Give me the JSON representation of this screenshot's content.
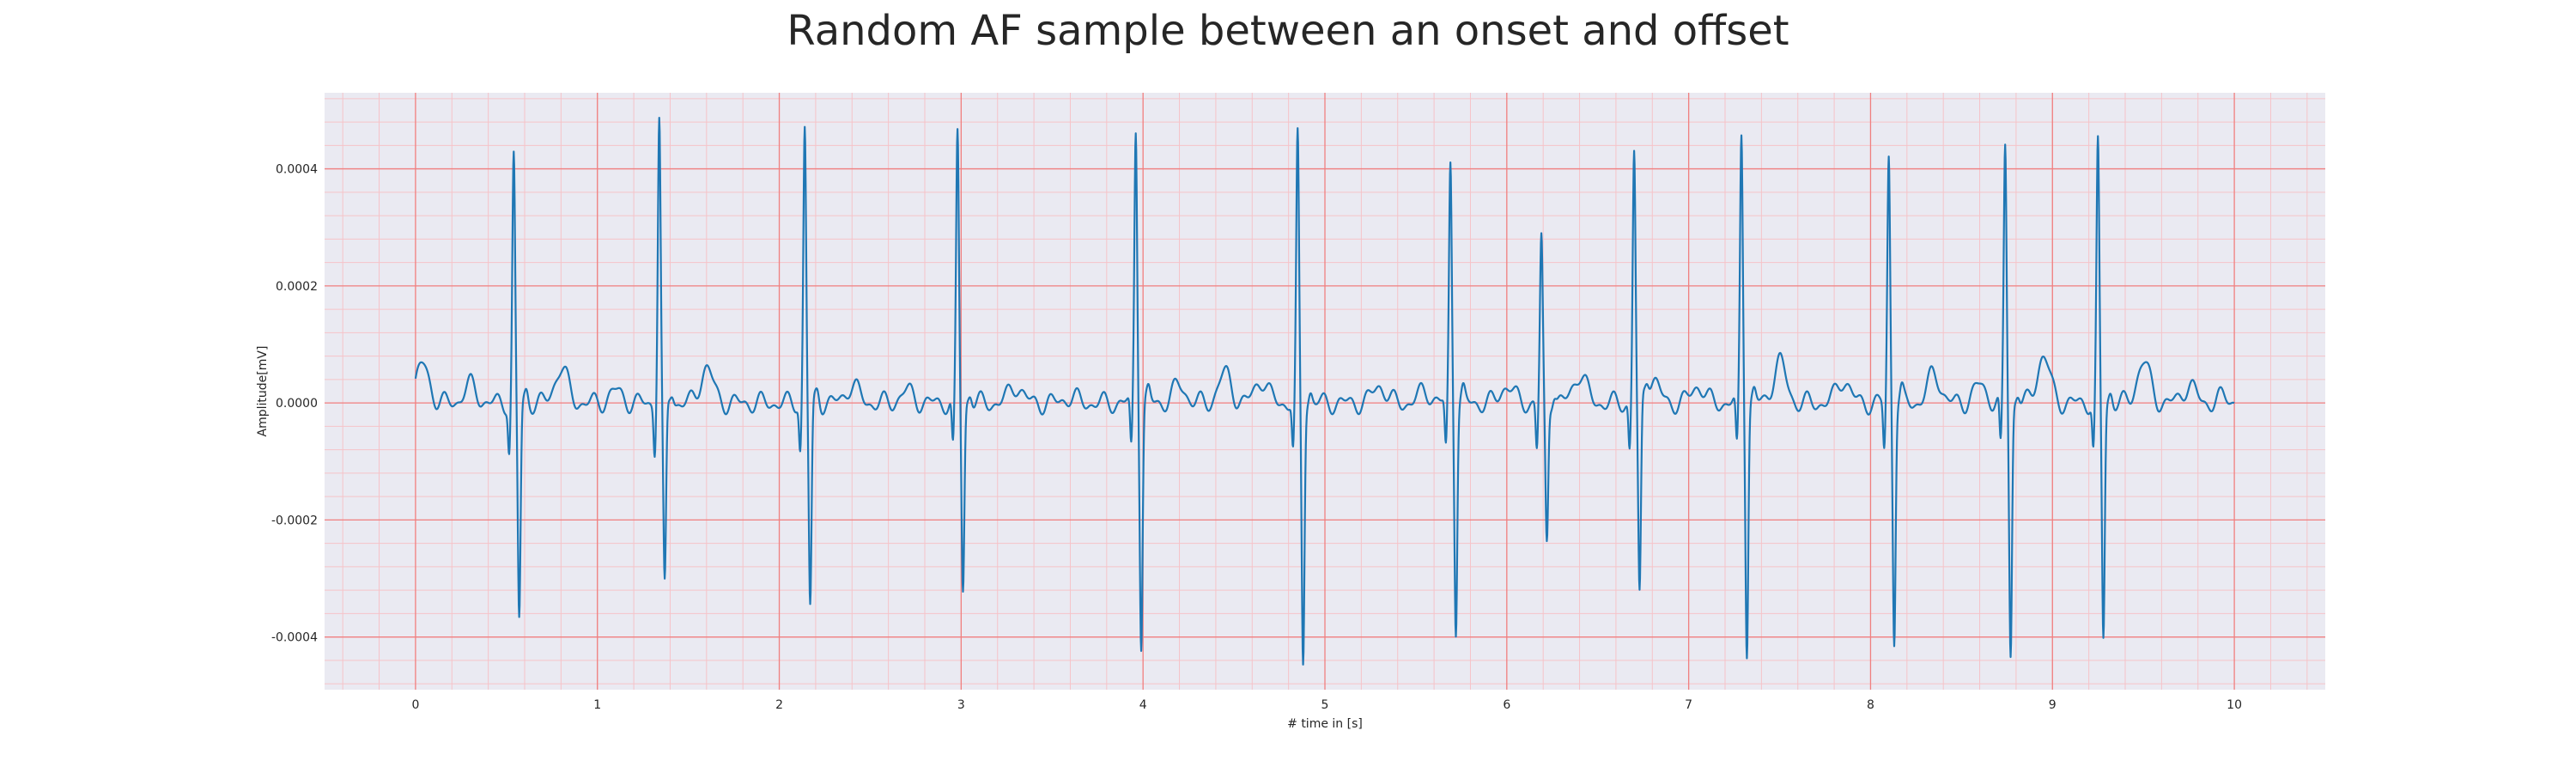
{
  "chart_data": {
    "type": "line",
    "title": "Random AF sample between an onset and offset",
    "xlabel": "# time in [s]",
    "ylabel": "Amplitude[mV]",
    "xlim": [
      -0.5,
      10.5
    ],
    "ylim": [
      -0.00049,
      0.00053
    ],
    "x_ticks": [
      0,
      1,
      2,
      3,
      4,
      5,
      6,
      7,
      8,
      9,
      10
    ],
    "x_tick_labels": [
      "0",
      "1",
      "2",
      "3",
      "4",
      "5",
      "6",
      "7",
      "8",
      "9",
      "10"
    ],
    "y_ticks": [
      -0.0004,
      -0.0002,
      0.0,
      0.0002,
      0.0004
    ],
    "y_tick_labels": [
      "-0.0004",
      "-0.0002",
      "0.0000",
      "0.0002",
      "0.0004"
    ],
    "grid": true,
    "colors": {
      "line": "#1f77b4",
      "plot_background": "#eaeaf2",
      "major_grid": "#f08080",
      "minor_grid": "#f6c3c8"
    },
    "series": [
      {
        "r_peaks": [
          [
            0.54,
            0.00042,
            -0.00037
          ],
          [
            1.34,
            0.00049,
            -0.00032
          ],
          [
            2.14,
            0.00047,
            -0.00035
          ],
          [
            2.98,
            0.00046,
            -0.00032
          ],
          [
            3.96,
            0.00047,
            -0.00041
          ],
          [
            4.85,
            0.00045,
            -0.00044
          ],
          [
            5.69,
            0.00041,
            -0.00038
          ],
          [
            6.19,
            0.00028,
            -0.00024
          ],
          [
            6.7,
            0.00043,
            -0.00034
          ],
          [
            7.29,
            0.00046,
            -0.00042
          ],
          [
            8.1,
            0.00042,
            -0.0004
          ],
          [
            8.74,
            0.00044,
            -0.00043
          ],
          [
            9.25,
            0.00044,
            -0.0004
          ]
        ],
        "baseline_waves": [
          [
            0.04,
            6.5e-05
          ],
          [
            0.3,
            3e-05
          ],
          [
            0.8,
            6e-05
          ],
          [
            1.1,
            2e-05
          ],
          [
            1.6,
            6e-05
          ],
          [
            2.4,
            3e-05
          ],
          [
            2.7,
            2e-05
          ],
          [
            3.3,
            3e-05
          ],
          [
            3.6,
            1e-05
          ],
          [
            4.2,
            3e-05
          ],
          [
            4.45,
            5e-05
          ],
          [
            4.65,
            4e-05
          ],
          [
            5.3,
            3e-05
          ],
          [
            5.55,
            2e-05
          ],
          [
            6.0,
            3e-05
          ],
          [
            6.4,
            5e-05
          ],
          [
            6.8,
            4e-05
          ],
          [
            7.05,
            3e-05
          ],
          [
            7.5,
            7e-05
          ],
          [
            7.85,
            4e-05
          ],
          [
            8.35,
            5e-05
          ],
          [
            8.6,
            3e-05
          ],
          [
            8.95,
            8e-05
          ],
          [
            9.5,
            7e-05
          ],
          [
            9.75,
            3e-05
          ],
          [
            9.95,
            1e-05
          ]
        ]
      }
    ]
  }
}
